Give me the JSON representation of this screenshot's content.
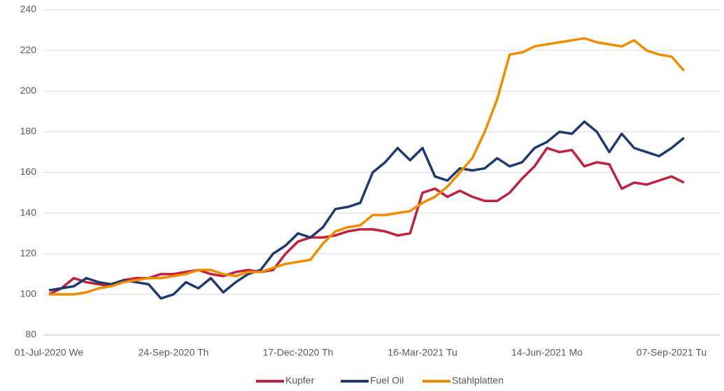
{
  "chart_data": {
    "type": "line",
    "x": [
      "01-Jul-2020 We",
      null,
      null,
      null,
      null,
      null,
      null,
      null,
      null,
      null,
      "24-Sep-2020 Th",
      null,
      null,
      null,
      null,
      null,
      null,
      null,
      null,
      null,
      "17-Dec-2020 Th",
      null,
      null,
      null,
      null,
      null,
      null,
      null,
      null,
      null,
      "16-Mar-2021 Tu",
      null,
      null,
      null,
      null,
      null,
      null,
      null,
      null,
      null,
      "14-Jun-2021 Mo",
      null,
      null,
      null,
      null,
      null,
      null,
      null,
      null,
      null,
      "07-Sep-2021 Tu",
      null
    ],
    "series": [
      {
        "name": "Kupfer",
        "color": "#c0213f",
        "values": [
          100,
          103,
          108,
          106,
          105,
          104,
          107,
          108,
          108,
          110,
          110,
          111,
          112,
          110,
          109,
          111,
          112,
          111,
          112,
          120,
          126,
          128,
          128,
          129,
          131,
          132,
          132,
          131,
          129,
          130,
          150,
          152,
          148,
          151,
          148,
          146,
          146,
          150,
          157,
          163,
          172,
          170,
          171,
          163,
          165,
          164,
          152,
          155,
          154,
          156,
          158,
          155
        ]
      },
      {
        "name": "Fuel Oil",
        "color": "#1f3b6e",
        "values": [
          102,
          103,
          104,
          108,
          106,
          105,
          107,
          106,
          105,
          98,
          100,
          106,
          103,
          108,
          101,
          106,
          110,
          112,
          120,
          124,
          130,
          128,
          133,
          142,
          143,
          145,
          160,
          165,
          172,
          166,
          172,
          158,
          156,
          162,
          161,
          162,
          167,
          163,
          165,
          172,
          175,
          180,
          179,
          185,
          180,
          170,
          179,
          172,
          170,
          168,
          172,
          177
        ]
      },
      {
        "name": "Stahlplatten",
        "color": "#f08c00",
        "values": [
          100,
          100,
          100,
          101,
          103,
          104,
          106,
          107,
          108,
          108,
          109,
          110,
          112,
          112,
          110,
          109,
          111,
          111,
          113,
          115,
          116,
          117,
          125,
          131,
          133,
          134,
          139,
          139,
          140,
          141,
          145,
          148,
          153,
          160,
          167,
          180,
          196,
          218,
          219,
          222,
          223,
          224,
          225,
          226,
          224,
          223,
          222,
          225,
          220,
          218,
          217,
          210
        ]
      }
    ],
    "ylim": [
      80,
      240
    ],
    "yticks": [
      80,
      100,
      120,
      140,
      160,
      180,
      200,
      220,
      240
    ],
    "grid": true,
    "legend": "bottom"
  }
}
